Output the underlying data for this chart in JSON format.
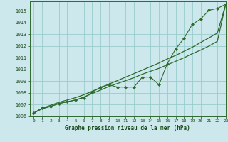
{
  "title": "Graphe pression niveau de la mer (hPa)",
  "background_color": "#cce8ec",
  "grid_color": "#99cccc",
  "line_color": "#2d6a2d",
  "xlim": [
    -0.5,
    23
  ],
  "ylim": [
    1006.0,
    1015.8
  ],
  "xticks": [
    0,
    1,
    2,
    3,
    4,
    5,
    6,
    7,
    8,
    9,
    10,
    11,
    12,
    13,
    14,
    15,
    16,
    17,
    18,
    19,
    20,
    21,
    22,
    23
  ],
  "yticks": [
    1006,
    1007,
    1008,
    1009,
    1010,
    1011,
    1012,
    1013,
    1014,
    1015
  ],
  "series_straight1": [
    1006.3,
    1006.65,
    1006.85,
    1007.1,
    1007.25,
    1007.4,
    1007.65,
    1007.95,
    1008.25,
    1008.55,
    1008.8,
    1009.05,
    1009.3,
    1009.6,
    1009.85,
    1010.1,
    1010.4,
    1010.7,
    1011.0,
    1011.35,
    1011.65,
    1012.0,
    1012.4,
    1015.55
  ],
  "series_straight2": [
    1006.3,
    1006.7,
    1006.95,
    1007.2,
    1007.4,
    1007.6,
    1007.85,
    1008.15,
    1008.45,
    1008.75,
    1009.05,
    1009.35,
    1009.65,
    1009.95,
    1010.25,
    1010.55,
    1010.9,
    1011.2,
    1011.55,
    1011.9,
    1012.3,
    1012.7,
    1013.1,
    1015.55
  ],
  "series_jagged": [
    1006.3,
    1006.7,
    1006.85,
    1007.1,
    1007.25,
    1007.4,
    1007.6,
    1008.05,
    1008.5,
    1008.7,
    1008.5,
    1008.5,
    1008.5,
    1009.35,
    1009.35,
    1008.7,
    1010.5,
    1011.75,
    1012.65,
    1013.85,
    1014.3,
    1015.05,
    1015.2,
    1015.55
  ]
}
